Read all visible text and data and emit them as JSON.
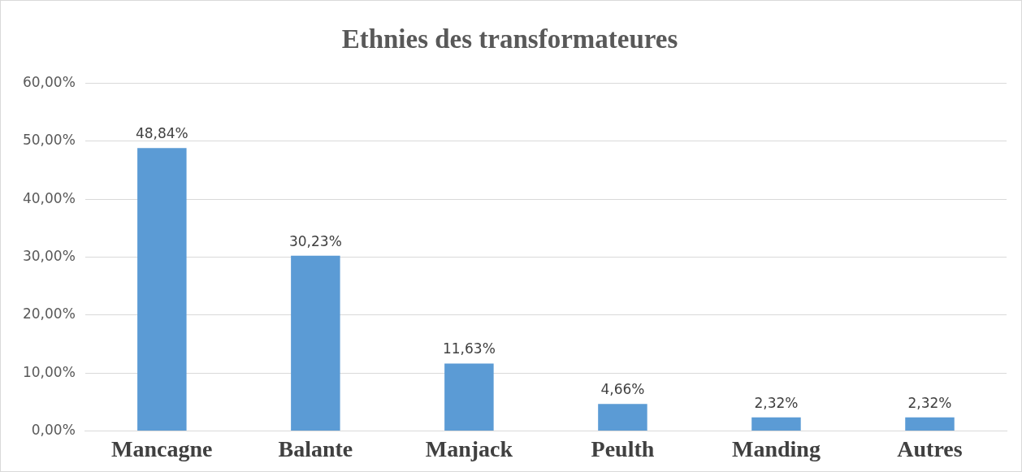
{
  "chart_data": {
    "type": "bar",
    "title": "Ethnies des transformateures",
    "categories": [
      "Mancagne",
      "Balante",
      "Manjack",
      "Peulth",
      "Manding",
      "Autres"
    ],
    "values": [
      48.84,
      30.23,
      11.63,
      4.66,
      2.32,
      2.32
    ],
    "value_labels": [
      "48,84%",
      "30,23%",
      "11,63%",
      "4,66%",
      "2,32%",
      "2,32%"
    ],
    "color": "#5b9bd5",
    "ylim": [
      0,
      60
    ],
    "yticks": [
      {
        "value": 0,
        "label": "0,00%"
      },
      {
        "value": 10,
        "label": "10,00%"
      },
      {
        "value": 20,
        "label": "20,00%"
      },
      {
        "value": 30,
        "label": "30,00%"
      },
      {
        "value": 40,
        "label": "40,00%"
      },
      {
        "value": 50,
        "label": "50,00%"
      },
      {
        "value": 60,
        "label": "60,00%"
      }
    ],
    "grid": "y"
  }
}
